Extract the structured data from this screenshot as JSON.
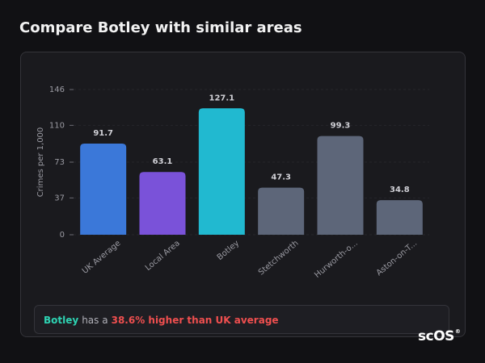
{
  "chart_data": {
    "type": "bar",
    "title": "Compare Botley with similar areas",
    "y_label": "Crimes per 1,000",
    "categories": [
      "UK Average",
      "Local Area",
      "Botley",
      "Stetchworth",
      "Hurworth-o...",
      "Aston-on-T..."
    ],
    "values": [
      91.7,
      63.1,
      127.1,
      47.3,
      99.3,
      34.8
    ],
    "colors": [
      "#3b78d9",
      "#7a52d9",
      "#21b9d0",
      "#5d6679",
      "#5d6679",
      "#5d6679"
    ],
    "ylim": [
      0,
      146
    ],
    "yticks": [
      0,
      37,
      73,
      110,
      146
    ],
    "grid": true
  },
  "summary": {
    "area": "Botley",
    "text": "has a",
    "highlight": "38.6% higher than UK average"
  },
  "logo": {
    "text": "scOS",
    "mark": "®"
  }
}
